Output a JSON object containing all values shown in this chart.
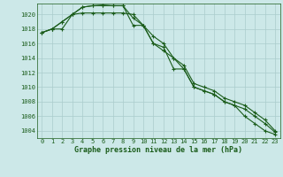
{
  "background_color": "#cce8e8",
  "grid_color": "#aacccc",
  "line_color": "#1a5c1a",
  "xlabel": "Graphe pression niveau de la mer (hPa)",
  "ylim": [
    1003.0,
    1021.5
  ],
  "xlim": [
    -0.5,
    23.5
  ],
  "yticks": [
    1004,
    1006,
    1008,
    1010,
    1012,
    1014,
    1016,
    1018,
    1020
  ],
  "xticks": [
    0,
    1,
    2,
    3,
    4,
    5,
    6,
    7,
    8,
    9,
    10,
    11,
    12,
    13,
    14,
    15,
    16,
    17,
    18,
    19,
    20,
    21,
    22,
    23
  ],
  "s1": [
    1017.5,
    1018.0,
    1018.0,
    1020.0,
    1020.2,
    1020.2,
    1020.2,
    1020.2,
    1020.2,
    1020.0,
    1018.5,
    1016.0,
    1015.0,
    1014.0,
    1012.5,
    1010.0,
    1009.5,
    1009.0,
    1008.0,
    1007.5,
    1006.0,
    1005.0,
    1004.0,
    1003.5
  ],
  "s2": [
    1017.5,
    1018.0,
    1019.0,
    1020.0,
    1021.0,
    1021.2,
    1021.2,
    1021.2,
    1021.2,
    1018.5,
    1018.5,
    1016.0,
    1015.5,
    1012.5,
    1012.5,
    1010.0,
    1009.5,
    1009.0,
    1008.0,
    1007.5,
    1007.0,
    1006.0,
    1005.0,
    1003.8
  ],
  "s3": [
    1017.5,
    1018.0,
    1019.0,
    1020.0,
    1021.0,
    1021.2,
    1021.3,
    1021.2,
    1021.2,
    1019.5,
    1018.5,
    1017.0,
    1016.0,
    1014.0,
    1013.0,
    1010.5,
    1010.0,
    1009.5,
    1008.5,
    1008.0,
    1007.5,
    1006.5,
    1005.5,
    1004.0
  ],
  "tick_fontsize": 5.0,
  "xlabel_fontsize": 6.0,
  "linewidth": 0.8,
  "markersize": 3.5
}
